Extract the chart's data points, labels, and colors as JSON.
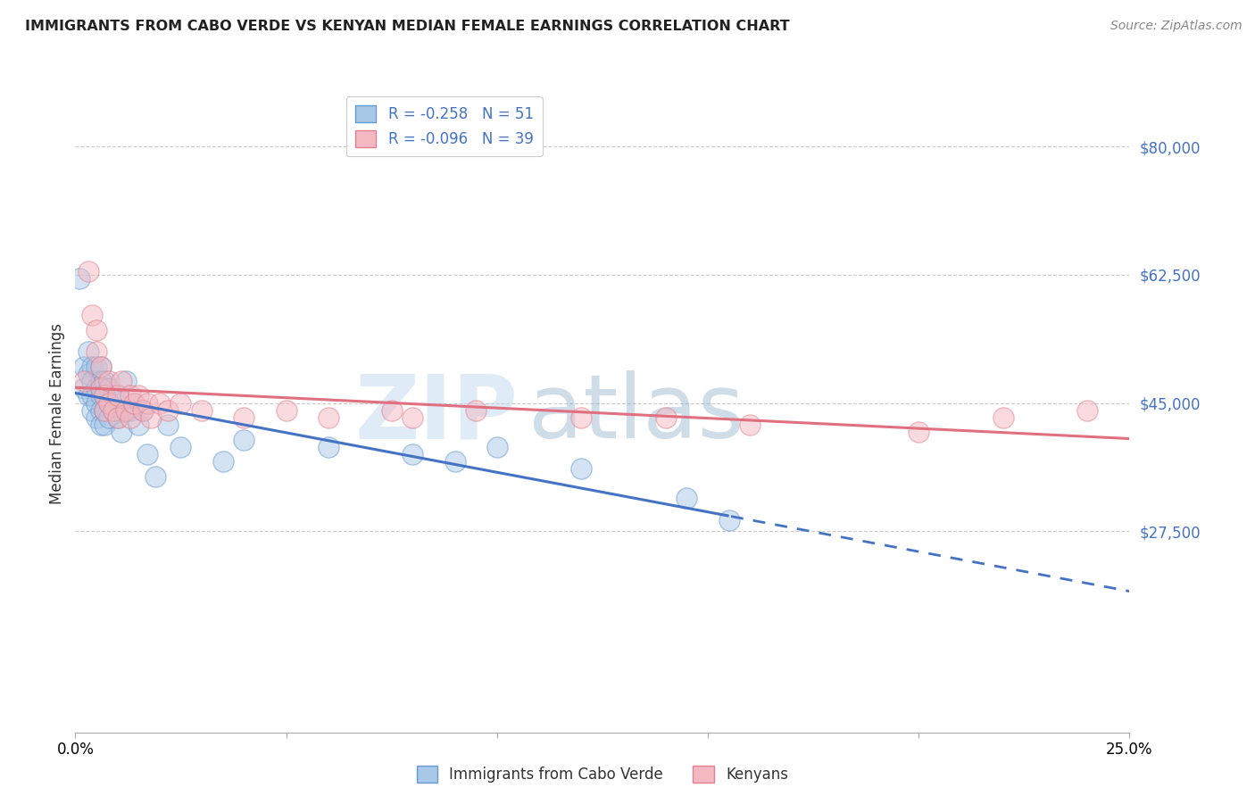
{
  "title": "IMMIGRANTS FROM CABO VERDE VS KENYAN MEDIAN FEMALE EARNINGS CORRELATION CHART",
  "source": "Source: ZipAtlas.com",
  "ylabel": "Median Female Earnings",
  "y_ticks": [
    0,
    27500,
    45000,
    62500,
    80000
  ],
  "y_tick_labels": [
    "",
    "$27,500",
    "$45,000",
    "$62,500",
    "$80,000"
  ],
  "x_min": 0.0,
  "x_max": 0.25,
  "y_min": 0,
  "y_max": 87000,
  "legend_blue_label": "Immigrants from Cabo Verde",
  "legend_pink_label": "Kenyans",
  "blue_color": "#a8c8e8",
  "blue_edge_color": "#6699cc",
  "blue_line_color": "#4472c4",
  "pink_color": "#f4b8c0",
  "pink_edge_color": "#e08090",
  "pink_line_color": "#e07080",
  "blue_x": [
    0.001,
    0.002,
    0.002,
    0.003,
    0.003,
    0.003,
    0.004,
    0.004,
    0.004,
    0.004,
    0.005,
    0.005,
    0.005,
    0.005,
    0.006,
    0.006,
    0.006,
    0.006,
    0.006,
    0.007,
    0.007,
    0.007,
    0.007,
    0.008,
    0.008,
    0.008,
    0.009,
    0.009,
    0.01,
    0.01,
    0.011,
    0.011,
    0.012,
    0.012,
    0.013,
    0.014,
    0.015,
    0.016,
    0.017,
    0.019,
    0.022,
    0.025,
    0.035,
    0.04,
    0.06,
    0.08,
    0.09,
    0.1,
    0.12,
    0.145,
    0.155
  ],
  "blue_y": [
    62000,
    50000,
    47000,
    52000,
    49000,
    46000,
    50000,
    48000,
    46000,
    44000,
    50000,
    47000,
    45000,
    43000,
    50000,
    48000,
    46000,
    44000,
    42000,
    48000,
    46000,
    44000,
    42000,
    47000,
    45000,
    43000,
    46000,
    44000,
    46000,
    43000,
    44000,
    41000,
    48000,
    44000,
    44000,
    45000,
    42000,
    44000,
    38000,
    35000,
    42000,
    39000,
    37000,
    40000,
    39000,
    38000,
    37000,
    39000,
    36000,
    32000,
    29000
  ],
  "pink_x": [
    0.002,
    0.003,
    0.004,
    0.005,
    0.005,
    0.006,
    0.006,
    0.007,
    0.007,
    0.008,
    0.008,
    0.009,
    0.01,
    0.01,
    0.011,
    0.012,
    0.013,
    0.013,
    0.014,
    0.015,
    0.016,
    0.017,
    0.018,
    0.02,
    0.022,
    0.025,
    0.03,
    0.04,
    0.05,
    0.06,
    0.075,
    0.08,
    0.095,
    0.12,
    0.14,
    0.16,
    0.2,
    0.22,
    0.24
  ],
  "pink_y": [
    48000,
    63000,
    57000,
    55000,
    52000,
    50000,
    47000,
    46000,
    44000,
    48000,
    45000,
    44000,
    46000,
    43000,
    48000,
    44000,
    46000,
    43000,
    45000,
    46000,
    44000,
    45000,
    43000,
    45000,
    44000,
    45000,
    44000,
    43000,
    44000,
    43000,
    44000,
    43000,
    44000,
    43000,
    43000,
    42000,
    41000,
    43000,
    44000
  ],
  "watermark_zip": "ZIP",
  "watermark_atlas": "atlas",
  "background_color": "#ffffff",
  "grid_color": "#cccccc"
}
